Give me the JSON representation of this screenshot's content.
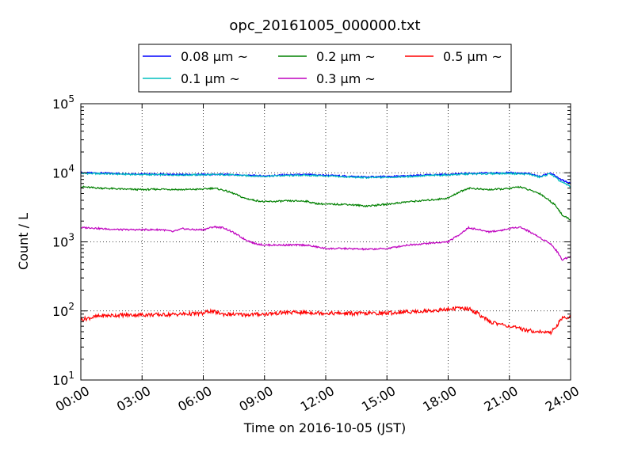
{
  "chart_data": {
    "type": "line",
    "title": "opc_20161005_000000.txt",
    "xlabel": "Time on 2016-10-05 (JST)",
    "ylabel": "Count / L",
    "x_unit": "hours",
    "xlim": [
      0,
      24
    ],
    "xticks": [
      0,
      3,
      6,
      9,
      12,
      15,
      18,
      21,
      24
    ],
    "xtick_labels": [
      "00:00",
      "03:00",
      "06:00",
      "09:00",
      "12:00",
      "15:00",
      "18:00",
      "21:00",
      "24:00"
    ],
    "yscale": "log",
    "ylim": [
      10,
      100000
    ],
    "yticks": [
      10,
      100,
      1000,
      10000,
      100000
    ],
    "ytick_labels": [
      {
        "base": "10",
        "exp": "1"
      },
      {
        "base": "10",
        "exp": "2"
      },
      {
        "base": "10",
        "exp": "3"
      },
      {
        "base": "10",
        "exp": "4"
      },
      {
        "base": "10",
        "exp": "5"
      }
    ],
    "grid": "dotted",
    "legend_position": "top, above plot",
    "series": [
      {
        "name": "0.08 μm ~",
        "color": "#0000ff",
        "x": [
          0,
          1,
          3,
          5,
          7,
          8,
          9,
          10,
          11,
          12,
          13,
          14,
          15,
          16,
          17,
          18,
          19,
          20,
          21,
          22,
          22.5,
          23,
          23.5,
          24
        ],
        "y": [
          10000,
          9900,
          9600,
          9400,
          9500,
          9200,
          9000,
          9300,
          9400,
          9200,
          8900,
          8700,
          8800,
          9000,
          9300,
          9500,
          9800,
          9900,
          10000,
          9700,
          8800,
          10000,
          8000,
          7000
        ]
      },
      {
        "name": "0.1 μm ~",
        "color": "#00bfbf",
        "x": [
          0,
          1,
          3,
          5,
          7,
          8,
          9,
          10,
          11,
          12,
          13,
          14,
          15,
          16,
          17,
          18,
          19,
          20,
          21,
          22,
          22.5,
          23,
          23.5,
          24
        ],
        "y": [
          9800,
          9700,
          9400,
          9300,
          9400,
          9100,
          8900,
          9100,
          9200,
          9000,
          8700,
          8500,
          8600,
          8800,
          9100,
          9300,
          9600,
          9700,
          9800,
          9500,
          8600,
          9700,
          7500,
          6300
        ]
      },
      {
        "name": "0.2 μm ~",
        "color": "#008000",
        "x": [
          0,
          0.5,
          1,
          2,
          3,
          4,
          5,
          6,
          6.5,
          7,
          7.5,
          8,
          8.5,
          9,
          10,
          11,
          11.5,
          12,
          13,
          14,
          15,
          16,
          17,
          18,
          18.5,
          19,
          19.5,
          20,
          21,
          21.5,
          22,
          22.5,
          23,
          23.3,
          23.6,
          24
        ],
        "y": [
          6300,
          6100,
          6000,
          5800,
          5700,
          5800,
          5700,
          5800,
          6000,
          5600,
          5000,
          4300,
          4000,
          3800,
          3900,
          3900,
          3600,
          3500,
          3500,
          3300,
          3500,
          3800,
          4000,
          4300,
          5200,
          6000,
          5800,
          5700,
          5900,
          6300,
          5600,
          5000,
          3900,
          3300,
          2400,
          2100
        ]
      },
      {
        "name": "0.3 μm ~",
        "color": "#bf00bf",
        "x": [
          0,
          0.5,
          1,
          2,
          3,
          4,
          4.5,
          5,
          5.5,
          6,
          6.5,
          7,
          7.5,
          8,
          8.5,
          9,
          10,
          11,
          11.5,
          12,
          13,
          14,
          15,
          16,
          17,
          18,
          18.5,
          19,
          19.5,
          20,
          20.5,
          21,
          21.5,
          22,
          22.5,
          23,
          23.3,
          23.6,
          24
        ],
        "y": [
          1600,
          1600,
          1550,
          1500,
          1500,
          1500,
          1400,
          1550,
          1500,
          1500,
          1650,
          1600,
          1350,
          1100,
          950,
          900,
          900,
          900,
          850,
          800,
          800,
          780,
          800,
          900,
          950,
          1000,
          1250,
          1600,
          1500,
          1400,
          1450,
          1550,
          1650,
          1400,
          1150,
          950,
          750,
          550,
          620
        ]
      },
      {
        "name": "0.5 μm ~",
        "color": "#ff0000",
        "x": [
          0,
          0.5,
          1,
          2,
          3,
          4,
          5,
          6,
          6.3,
          7,
          8,
          9,
          10,
          11,
          12,
          13,
          14,
          15,
          16,
          17,
          18,
          18.5,
          19,
          19.5,
          20,
          20.5,
          21,
          21.5,
          22,
          22.5,
          23,
          23.3,
          23.6,
          24
        ],
        "y": [
          75,
          80,
          85,
          87,
          88,
          88,
          90,
          92,
          100,
          90,
          88,
          90,
          95,
          95,
          93,
          92,
          92,
          93,
          97,
          100,
          105,
          110,
          108,
          90,
          70,
          65,
          60,
          55,
          52,
          50,
          48,
          60,
          80,
          80
        ]
      }
    ]
  }
}
